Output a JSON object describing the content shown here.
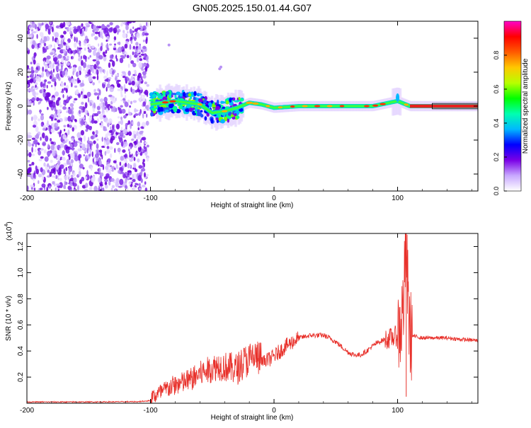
{
  "title": "GN05.2025.150.01.44.G07",
  "chart_data": [
    {
      "type": "heatmap",
      "xlabel": "Height of straight line (km)",
      "ylabel": "Frequency (Hz)",
      "xlim": [
        -200,
        165
      ],
      "ylim": [
        -50,
        50
      ],
      "xticks": [
        -200,
        -100,
        0,
        100
      ],
      "xtick_labels": [
        "-200",
        "-100",
        "0",
        "100"
      ],
      "yticks": [
        -40,
        -20,
        0,
        20,
        40
      ],
      "ytick_labels": [
        "-40",
        "-20",
        "0",
        "20",
        "40"
      ],
      "noise_region_x": [
        -200,
        -102
      ],
      "signal_ridge": [
        {
          "x": -100,
          "y": 1
        },
        {
          "x": -90,
          "y": 2
        },
        {
          "x": -80,
          "y": 3
        },
        {
          "x": -70,
          "y": 2
        },
        {
          "x": -60,
          "y": 1
        },
        {
          "x": -50,
          "y": -4
        },
        {
          "x": -40,
          "y": -3
        },
        {
          "x": -30,
          "y": -1
        },
        {
          "x": -20,
          "y": 2
        },
        {
          "x": -10,
          "y": 1
        },
        {
          "x": 0,
          "y": -1
        },
        {
          "x": 20,
          "y": 0
        },
        {
          "x": 40,
          "y": 0
        },
        {
          "x": 60,
          "y": 0
        },
        {
          "x": 80,
          "y": 0
        },
        {
          "x": 100,
          "y": 3
        },
        {
          "x": 110,
          "y": 0
        },
        {
          "x": 130,
          "y": 0
        },
        {
          "x": 165,
          "y": 0
        }
      ],
      "colorbar": {
        "label": "Normalized spectral amplitude",
        "range": [
          0,
          1
        ],
        "ticks": [
          0.0,
          0.2,
          0.4,
          0.6,
          0.8
        ],
        "tick_labels": [
          "0.0",
          "0.2",
          "0.4",
          "0.6",
          "0.8"
        ],
        "colors": [
          "#ffffff",
          "#c8a8ff",
          "#7a00e6",
          "#0000ff",
          "#00b8ff",
          "#00ffb0",
          "#00ff00",
          "#b8ff00",
          "#ffc800",
          "#ff5a00",
          "#ff0000",
          "#ff00c8"
        ]
      }
    },
    {
      "type": "line",
      "xlabel": "Height of straight line (km)",
      "ylabel": "SNR (10 * v/v)",
      "multiplier_label": "(x10",
      "multiplier_exp": "4",
      "multiplier_close": ")",
      "xlim": [
        -200,
        165
      ],
      "ylim": [
        0,
        1.3
      ],
      "xticks": [
        -200,
        -100,
        0,
        100
      ],
      "xtick_labels": [
        "-200",
        "-100",
        "0",
        "100"
      ],
      "yticks": [
        0.2,
        0.4,
        0.6,
        0.8,
        1.0,
        1.2
      ],
      "ytick_labels": [
        "0.2",
        "0.4",
        "0.6",
        "0.8",
        "1.0",
        "1.2"
      ],
      "color": "#e8302a",
      "series": [
        {
          "x": [
            -200,
            -150,
            -110,
            -100,
            -95,
            -90,
            -85,
            -80,
            -75,
            -70,
            -65,
            -60,
            -55,
            -50,
            -45,
            -40,
            -35,
            -30,
            -25,
            -20,
            -15,
            -10,
            -5,
            0,
            5,
            10,
            15,
            20,
            25,
            30,
            35,
            40,
            45,
            50,
            55,
            60,
            65,
            70,
            75,
            80,
            85,
            90,
            95,
            100,
            103,
            105,
            107,
            108,
            110,
            115,
            120,
            130,
            140,
            150,
            165
          ],
          "y": [
            0.01,
            0.01,
            0.012,
            0.02,
            0.05,
            0.07,
            0.1,
            0.12,
            0.13,
            0.15,
            0.17,
            0.2,
            0.22,
            0.24,
            0.26,
            0.25,
            0.24,
            0.23,
            0.28,
            0.3,
            0.32,
            0.3,
            0.33,
            0.36,
            0.4,
            0.44,
            0.47,
            0.5,
            0.51,
            0.52,
            0.52,
            0.52,
            0.5,
            0.47,
            0.43,
            0.39,
            0.37,
            0.37,
            0.4,
            0.44,
            0.47,
            0.49,
            0.5,
            0.52,
            0.6,
            0.8,
            1.25,
            0.9,
            0.52,
            0.51,
            0.5,
            0.5,
            0.5,
            0.49,
            0.48
          ]
        }
      ]
    }
  ]
}
